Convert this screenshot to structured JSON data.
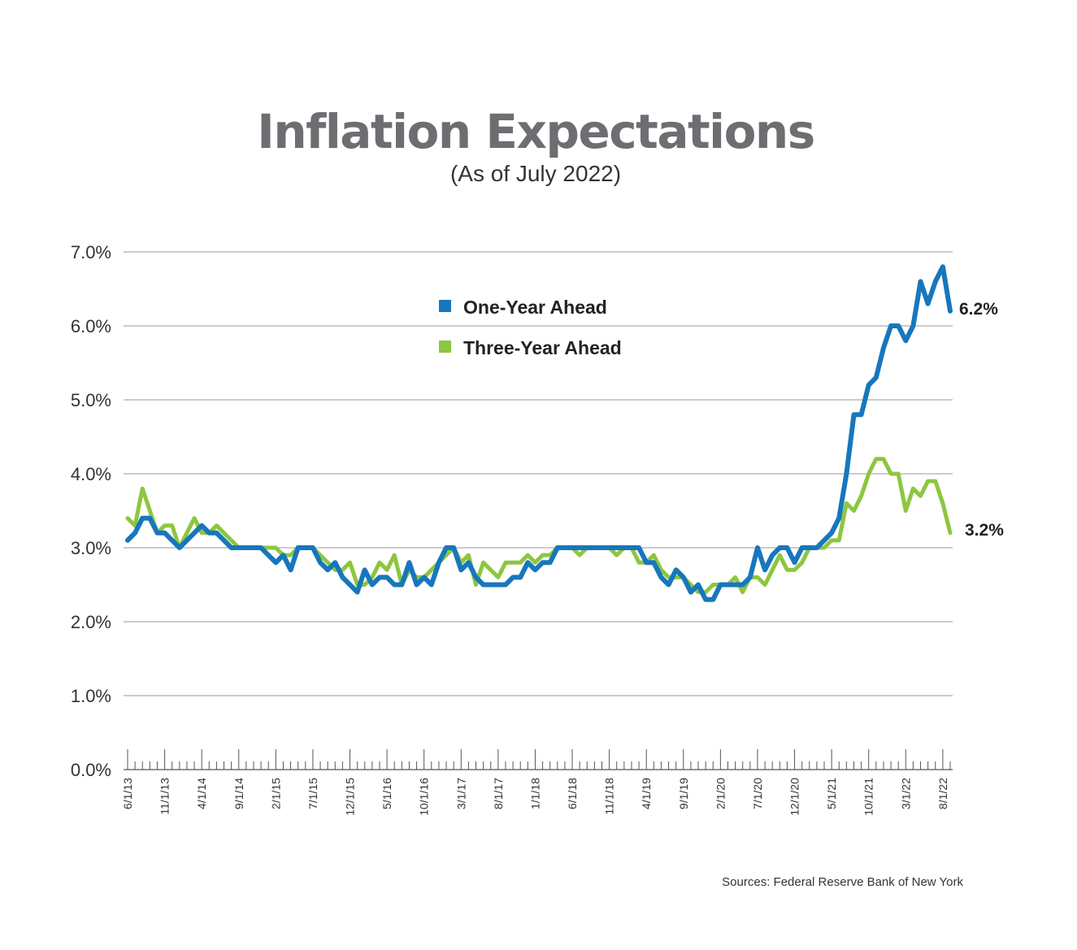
{
  "header": {
    "title": "Inflation Expectations",
    "subtitle": "(As of July 2022)"
  },
  "source": "Sources: Federal Reserve Bank of New York",
  "colors": {
    "one_year": "#1777bc",
    "three_year": "#8dc63f",
    "grid": "#9a9a9a",
    "axis": "#555555"
  },
  "chart_data": {
    "type": "line",
    "title": "Inflation Expectations",
    "subtitle": "(As of July 2022)",
    "xlabel": "",
    "ylabel": "",
    "ylim": [
      0,
      7
    ],
    "y_ticks": [
      "0.0%",
      "1.0%",
      "2.0%",
      "3.0%",
      "4.0%",
      "5.0%",
      "6.0%",
      "7.0%"
    ],
    "x_start": "6/1/13",
    "x_end": "8/1/22",
    "x_tick_labels": [
      "6/1/13",
      "11/1/13",
      "4/1/14",
      "9/1/14",
      "2/1/15",
      "7/1/15",
      "12/1/15",
      "5/1/16",
      "10/1/16",
      "3/1/17",
      "8/1/17",
      "1/1/18",
      "6/1/18",
      "11/1/18",
      "4/1/19",
      "9/1/19",
      "2/1/20",
      "7/1/20",
      "12/1/20",
      "5/1/21",
      "10/1/21",
      "3/1/22",
      "8/1/22"
    ],
    "legend": "top-center",
    "grid": true,
    "series": [
      {
        "name": "One-Year  Ahead",
        "end_label": "6.2%",
        "values": [
          3.1,
          3.2,
          3.4,
          3.4,
          3.2,
          3.2,
          3.1,
          3.0,
          3.1,
          3.2,
          3.3,
          3.2,
          3.2,
          3.1,
          3.0,
          3.0,
          3.0,
          3.0,
          3.0,
          2.9,
          2.8,
          2.9,
          2.7,
          3.0,
          3.0,
          3.0,
          2.8,
          2.7,
          2.8,
          2.6,
          2.5,
          2.4,
          2.7,
          2.5,
          2.6,
          2.6,
          2.5,
          2.5,
          2.8,
          2.5,
          2.6,
          2.5,
          2.8,
          3.0,
          3.0,
          2.7,
          2.8,
          2.6,
          2.5,
          2.5,
          2.5,
          2.5,
          2.6,
          2.6,
          2.8,
          2.7,
          2.8,
          2.8,
          3.0,
          3.0,
          3.0,
          3.0,
          3.0,
          3.0,
          3.0,
          3.0,
          3.0,
          3.0,
          3.0,
          3.0,
          2.8,
          2.8,
          2.6,
          2.5,
          2.7,
          2.6,
          2.4,
          2.5,
          2.3,
          2.3,
          2.5,
          2.5,
          2.5,
          2.5,
          2.6,
          3.0,
          2.7,
          2.9,
          3.0,
          3.0,
          2.8,
          3.0,
          3.0,
          3.0,
          3.1,
          3.2,
          3.4,
          4.0,
          4.8,
          4.8,
          5.2,
          5.3,
          5.7,
          6.0,
          6.0,
          5.8,
          6.0,
          6.6,
          6.3,
          6.6,
          6.8,
          6.2
        ]
      },
      {
        "name": "Three-Year Ahead",
        "end_label": "3.2%",
        "values": [
          3.4,
          3.3,
          3.8,
          3.5,
          3.2,
          3.3,
          3.3,
          3.0,
          3.2,
          3.4,
          3.2,
          3.2,
          3.3,
          3.2,
          3.1,
          3.0,
          3.0,
          3.0,
          3.0,
          3.0,
          3.0,
          2.9,
          2.9,
          3.0,
          3.0,
          3.0,
          2.9,
          2.8,
          2.7,
          2.7,
          2.8,
          2.5,
          2.5,
          2.6,
          2.8,
          2.7,
          2.9,
          2.5,
          2.7,
          2.6,
          2.6,
          2.7,
          2.8,
          2.9,
          3.0,
          2.8,
          2.9,
          2.5,
          2.8,
          2.7,
          2.6,
          2.8,
          2.8,
          2.8,
          2.9,
          2.8,
          2.9,
          2.9,
          3.0,
          3.0,
          3.0,
          2.9,
          3.0,
          3.0,
          3.0,
          3.0,
          2.9,
          3.0,
          3.0,
          2.8,
          2.8,
          2.9,
          2.7,
          2.6,
          2.6,
          2.6,
          2.5,
          2.4,
          2.4,
          2.5,
          2.5,
          2.5,
          2.6,
          2.4,
          2.6,
          2.6,
          2.5,
          2.7,
          2.9,
          2.7,
          2.7,
          2.8,
          3.0,
          3.0,
          3.0,
          3.1,
          3.1,
          3.6,
          3.5,
          3.7,
          4.0,
          4.2,
          4.2,
          4.0,
          4.0,
          3.5,
          3.8,
          3.7,
          3.9,
          3.9,
          3.6,
          3.2
        ]
      }
    ]
  }
}
